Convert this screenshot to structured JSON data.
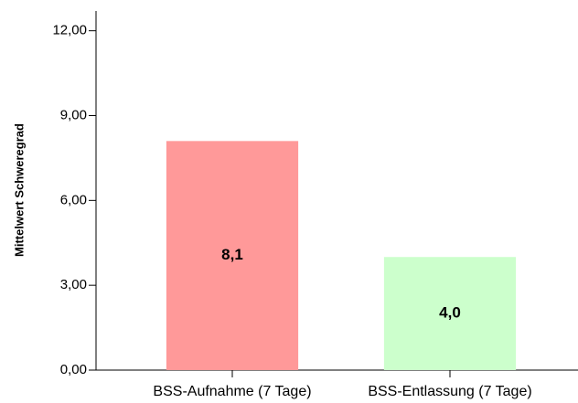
{
  "chart_data": {
    "type": "bar",
    "y_label": "Mittelwert Schweregrad",
    "categories": [
      "BSS-Aufnahme (7 Tage)",
      "BSS-Entlassung (7 Tage)"
    ],
    "values": [
      8.1,
      4.0
    ],
    "value_labels": [
      "8,1",
      "4,0"
    ],
    "colors": [
      "#ff9999",
      "#ccffcc"
    ],
    "ylim": [
      0,
      12.7
    ],
    "yticks": [
      {
        "value": 0,
        "label": "0,00"
      },
      {
        "value": 3,
        "label": "3,00"
      },
      {
        "value": 6,
        "label": "6,00"
      },
      {
        "value": 9,
        "label": "9,00"
      },
      {
        "value": 12,
        "label": "12,00"
      }
    ],
    "grid": false
  }
}
